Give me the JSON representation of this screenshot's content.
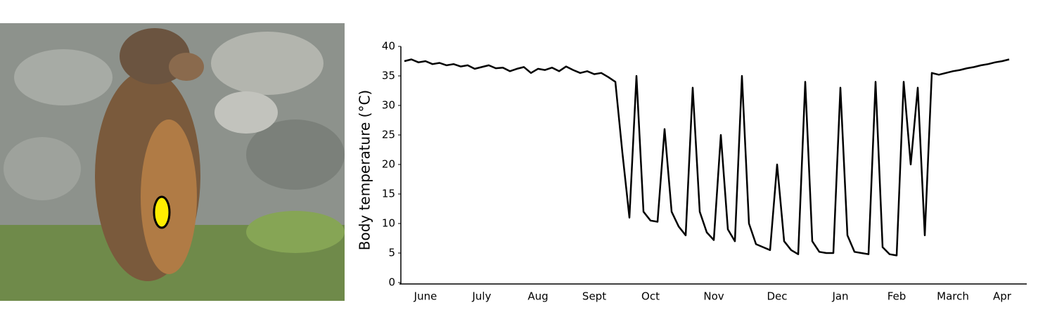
{
  "chart_data": {
    "type": "line",
    "y_label": "Body temperature (°C)",
    "categories": [
      null,
      null,
      null,
      "June",
      null,
      null,
      null,
      null,
      null,
      null,
      null,
      "July",
      null,
      null,
      null,
      null,
      null,
      null,
      null,
      "Aug",
      null,
      null,
      null,
      null,
      null,
      null,
      null,
      "Sept",
      null,
      null,
      null,
      null,
      null,
      null,
      null,
      "Oct",
      null,
      null,
      null,
      null,
      null,
      null,
      null,
      null,
      "Nov",
      null,
      null,
      null,
      null,
      null,
      null,
      null,
      null,
      "Dec",
      null,
      null,
      null,
      null,
      null,
      null,
      null,
      null,
      "Jan",
      null,
      null,
      null,
      null,
      null,
      null,
      null,
      "Feb",
      null,
      null,
      null,
      null,
      null,
      null,
      null,
      "March",
      null,
      null,
      null,
      null,
      null,
      null,
      "Apr",
      null,
      null,
      null
    ],
    "values": [
      37.5,
      37.8,
      37.3,
      37.5,
      37,
      37.2,
      36.8,
      37,
      36.6,
      36.8,
      36.2,
      36.5,
      36.8,
      36.3,
      36.4,
      35.8,
      36.2,
      36.5,
      35.5,
      36.2,
      36,
      36.4,
      35.8,
      36.6,
      36,
      35.5,
      35.8,
      35.3,
      35.5,
      34.8,
      34,
      22,
      11,
      35,
      12,
      10.5,
      10.3,
      26,
      12,
      9.5,
      8,
      33,
      12,
      8.5,
      7.2,
      25,
      9,
      7,
      35,
      10,
      6.5,
      6,
      5.5,
      20,
      7,
      5.5,
      4.8,
      34,
      7,
      5.2,
      5,
      5,
      33,
      8,
      5.2,
      5,
      4.8,
      34,
      6,
      4.8,
      4.6,
      34,
      20,
      33,
      8,
      35.5,
      35.2,
      35.5,
      35.8,
      36,
      36.3,
      36.5,
      36.8,
      37,
      37.3,
      37.5,
      37.8,
      null,
      null
    ],
    "color": "#000000",
    "ylim": [
      0,
      40
    ],
    "yticks": [
      0,
      5,
      10,
      15,
      20,
      25,
      30,
      35,
      40
    ]
  }
}
